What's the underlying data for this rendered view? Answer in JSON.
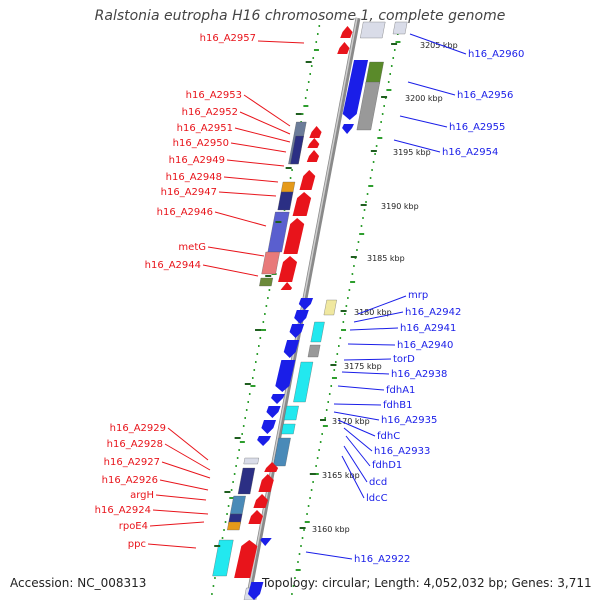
{
  "title": "Ralstonia eutropha H16 chromosome 1, complete genome",
  "accession": "Accession: NC_008313",
  "topology": "Topology: circular; Length: 4,052,032 bp; Genes: 3,711",
  "colors": {
    "forward": "#e8141b",
    "reverse": "#1a1ee8",
    "backbone": "#8a8a8a",
    "gc_ticks": "#2e9e2e",
    "cds_fill": [
      "#d9dce8",
      "#6b7c99",
      "#2b2f84",
      "#5a5fcf",
      "#e87a7a",
      "#5a8a2a",
      "#e59a1a",
      "#f0e8a0",
      "#22e8ef",
      "#4a8ab8",
      "#999999",
      "#6b8a3a"
    ]
  },
  "scale_labels": [
    "3205 kbp",
    "3200 kbp",
    "3195 kbp",
    "3190 kbp",
    "3185 kbp",
    "3180 kbp",
    "3175 kbp",
    "3170 kbp",
    "3165 kbp",
    "3160 kbp"
  ],
  "left_labels": [
    "h16_A2957",
    "h16_A2953",
    "h16_A2952",
    "h16_A2951",
    "h16_A2950",
    "h16_A2949",
    "h16_A2948",
    "h16_A2947",
    "h16_A2946",
    "metG",
    "h16_A2944",
    "h16_A2929",
    "h16_A2928",
    "h16_A2927",
    "h16_A2926",
    "argH",
    "h16_A2924",
    "rpoE4",
    "ppc"
  ],
  "right_labels": [
    "h16_A2960",
    "h16_A2956",
    "h16_A2955",
    "h16_A2954",
    "mrp",
    "h16_A2942",
    "h16_A2941",
    "h16_A2940",
    "torD",
    "h16_A2938",
    "fdhA1",
    "fdhB1",
    "h16_A2935",
    "fdhC",
    "h16_A2933",
    "fdhD1",
    "dcd",
    "ldcC",
    "h16_A2922"
  ]
}
